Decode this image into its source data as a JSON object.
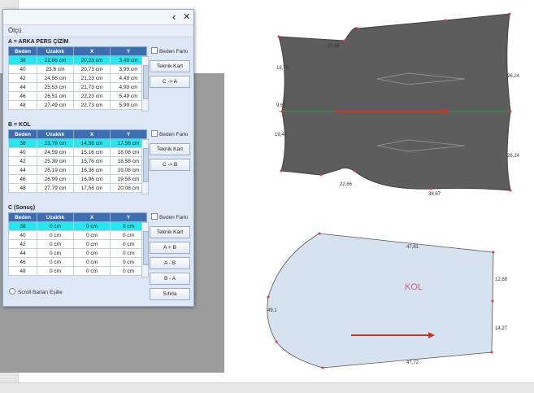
{
  "panel": {
    "back_icon": "back-chevron-icon",
    "close_icon": "close-icon",
    "back_glyph": "‹",
    "close_glyph": "✕",
    "title": "Ölçü",
    "scroll_option": "Scroll Barları Eşitle"
  },
  "columns": [
    "Beden",
    "Uzaklık",
    "X",
    "Y"
  ],
  "sections": [
    {
      "title": "A   =   ARKA PERS ÇİZİM",
      "rows": [
        [
          "38",
          "22,66 cm",
          "20,23 cm",
          "3,49 cm"
        ],
        [
          "40",
          "23,6 cm",
          "20,73 cm",
          "3,99 cm"
        ],
        [
          "42",
          "24,56 cm",
          "21,23 cm",
          "4,49 cm"
        ],
        [
          "44",
          "25,53 cm",
          "21,73 cm",
          "4,99 cm"
        ],
        [
          "46",
          "26,51 cm",
          "22,23 cm",
          "5,49 cm"
        ],
        [
          "48",
          "27,49 cm",
          "22,73 cm",
          "5,99 cm"
        ]
      ],
      "selected": 0,
      "checkbox": "Beden Farkı",
      "buttons": [
        "Teknik Kart",
        "C -> A"
      ]
    },
    {
      "title": "B   =   KOL",
      "rows": [
        [
          "38",
          "23,79 cm",
          "14,56 cm",
          "17,58 cm"
        ],
        [
          "40",
          "24,59 cm",
          "15,16 cm",
          "18,08 cm"
        ],
        [
          "42",
          "25,39 cm",
          "15,76 cm",
          "18,58 cm"
        ],
        [
          "44",
          "26,19 cm",
          "16,36 cm",
          "19,08 cm"
        ],
        [
          "46",
          "26,99 cm",
          "16,96 cm",
          "19,58 cm"
        ],
        [
          "48",
          "27,79 cm",
          "17,56 cm",
          "20,08 cm"
        ]
      ],
      "selected": 0,
      "checkbox": "Beden Farkı",
      "buttons": [
        "Teknik Kart",
        "C -> B"
      ]
    },
    {
      "title": "C (Sonuç)",
      "rows": [
        [
          "38",
          "0 cm",
          "0 cm",
          "0 cm"
        ],
        [
          "40",
          "0 cm",
          "0 cm",
          "0 cm"
        ],
        [
          "42",
          "0 cm",
          "0 cm",
          "0 cm"
        ],
        [
          "44",
          "0 cm",
          "0 cm",
          "0 cm"
        ],
        [
          "46",
          "0 cm",
          "0 cm",
          "0 cm"
        ],
        [
          "48",
          "0 cm",
          "0 cm",
          "0 cm"
        ]
      ],
      "selected": 0,
      "checkbox": "Beden Farkı",
      "buttons": [
        "Teknik Kart",
        "A + B",
        "A - B",
        "B - A",
        "Sıfırla"
      ]
    }
  ],
  "drawing": {
    "back_piece_labels": [
      "22,66",
      "18,79",
      "9,61",
      "19,47",
      "22,66",
      "38,87",
      "26,24",
      "26,24"
    ],
    "sleeve_piece": {
      "name": "KOL",
      "labels": [
        "47,81",
        "12,68",
        "14,27",
        "47,72",
        "49,1"
      ]
    },
    "colors": {
      "back_fill": "#5d5d5d",
      "sleeve_fill": "#d6e2f0",
      "arrow": "#c0392b",
      "grain_line": "#2fa64a",
      "point": "#e0344a",
      "kol_label": "#d65a78"
    }
  }
}
